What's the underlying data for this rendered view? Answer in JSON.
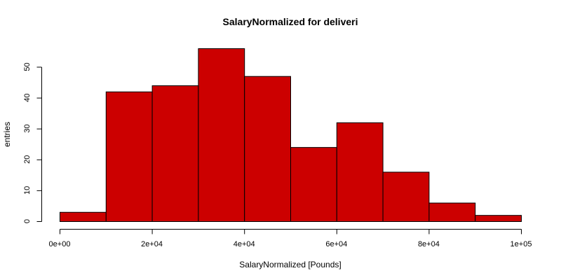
{
  "chart_data": {
    "type": "bar",
    "title": "SalaryNormalized for deliveri",
    "xlabel": "SalaryNormalized [Pounds]",
    "ylabel": "entries",
    "bin_edges": [
      0,
      10000,
      20000,
      30000,
      40000,
      50000,
      60000,
      70000,
      80000,
      90000,
      100000
    ],
    "values": [
      3,
      42,
      44,
      56,
      47,
      24,
      32,
      16,
      6,
      2
    ],
    "xlim": [
      0,
      100000
    ],
    "ylim": [
      0,
      56
    ],
    "x_ticks": [
      0,
      20000,
      40000,
      60000,
      80000,
      100000
    ],
    "x_tick_labels": [
      "0e+00",
      "2e+04",
      "4e+04",
      "6e+04",
      "8e+04",
      "1e+05"
    ],
    "y_ticks": [
      0,
      10,
      20,
      30,
      40,
      50
    ],
    "y_tick_labels": [
      "0",
      "10",
      "20",
      "30",
      "40",
      "50"
    ],
    "bar_color": "#cc0000",
    "grid": false,
    "legend": "none"
  }
}
